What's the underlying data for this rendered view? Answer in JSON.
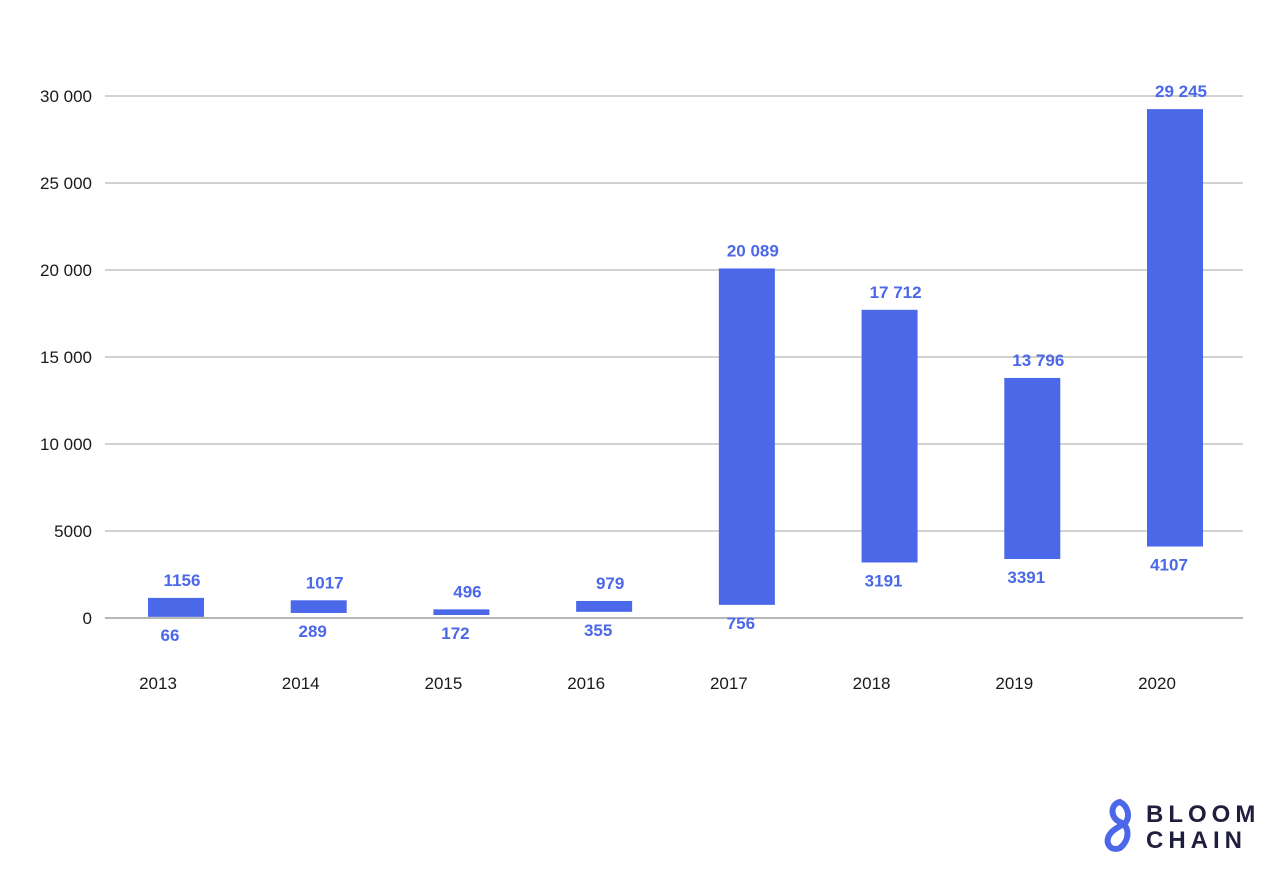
{
  "chart_data": {
    "type": "bar",
    "subtype": "floating-range",
    "categories": [
      "2013",
      "2014",
      "2015",
      "2016",
      "2017",
      "2018",
      "2019",
      "2020"
    ],
    "high": [
      1156,
      1017,
      496,
      979,
      20089,
      17712,
      13796,
      29245
    ],
    "low": [
      66,
      289,
      172,
      355,
      756,
      3191,
      3391,
      4107
    ],
    "high_labels": [
      "1156",
      "1017",
      "496",
      "979",
      "20 089",
      "17 712",
      "13 796",
      "29 245"
    ],
    "low_labels": [
      "66",
      "289",
      "172",
      "355",
      "756",
      "3191",
      "3391",
      "4107"
    ],
    "yticks": [
      0,
      5000,
      10000,
      15000,
      20000,
      25000,
      30000
    ],
    "ytick_labels": [
      "0",
      "5000",
      "10 000",
      "15 000",
      "20 000",
      "25 000",
      "30 000"
    ],
    "ylim": [
      0,
      30000
    ],
    "grid": true,
    "bar_color": "#4b68e8",
    "label_color": "#4b68e8"
  },
  "brand": {
    "line1": "BLOOM",
    "line2": "CHAIN",
    "text_color": "#1f1f3d",
    "mark_color": "#4b68e8"
  }
}
